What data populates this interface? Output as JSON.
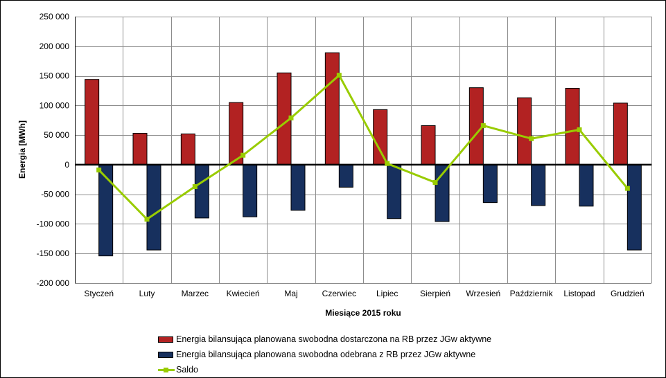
{
  "chart_data": {
    "type": "bar",
    "categories": [
      "Styczeń",
      "Luty",
      "Marzec",
      "Kwiecień",
      "Maj",
      "Czerwiec",
      "Lipiec",
      "Sierpień",
      "Wrzesień",
      "Październik",
      "Listopad",
      "Grudzień"
    ],
    "series": [
      {
        "name": "Energia bilansująca planowana swobodna dostarczona na RB przez JGw aktywne",
        "type": "bar",
        "color": "#b22222",
        "values": [
          144000,
          53000,
          52000,
          105000,
          155000,
          189000,
          93000,
          66000,
          130000,
          113000,
          129000,
          104000
        ]
      },
      {
        "name": "Energia bilansująca planowana swobodna odebrana z RB przez JGw aktywne",
        "type": "bar",
        "color": "#17305e",
        "values": [
          -154000,
          -144000,
          -90000,
          -88000,
          -77000,
          -38000,
          -91000,
          -96000,
          -64000,
          -69000,
          -70000,
          -144000
        ]
      },
      {
        "name": "Saldo",
        "type": "line",
        "color": "#99cc00",
        "values": [
          -9000,
          -92000,
          -37000,
          16000,
          79000,
          151000,
          2000,
          -30000,
          66000,
          44000,
          59000,
          -40000
        ]
      }
    ],
    "ylim": [
      -200000,
      250000
    ],
    "ytick_step": 50000,
    "ytick_labels": [
      "250 000",
      "200 000",
      "150 000",
      "100 000",
      "50 000",
      "0",
      "-50 000",
      "-100 000",
      "-150 000",
      "-200 000"
    ],
    "xlabel": "Miesiące 2015  roku",
    "ylabel": "Energia  [MWh]",
    "grid": true,
    "legend_position": "bottom"
  }
}
